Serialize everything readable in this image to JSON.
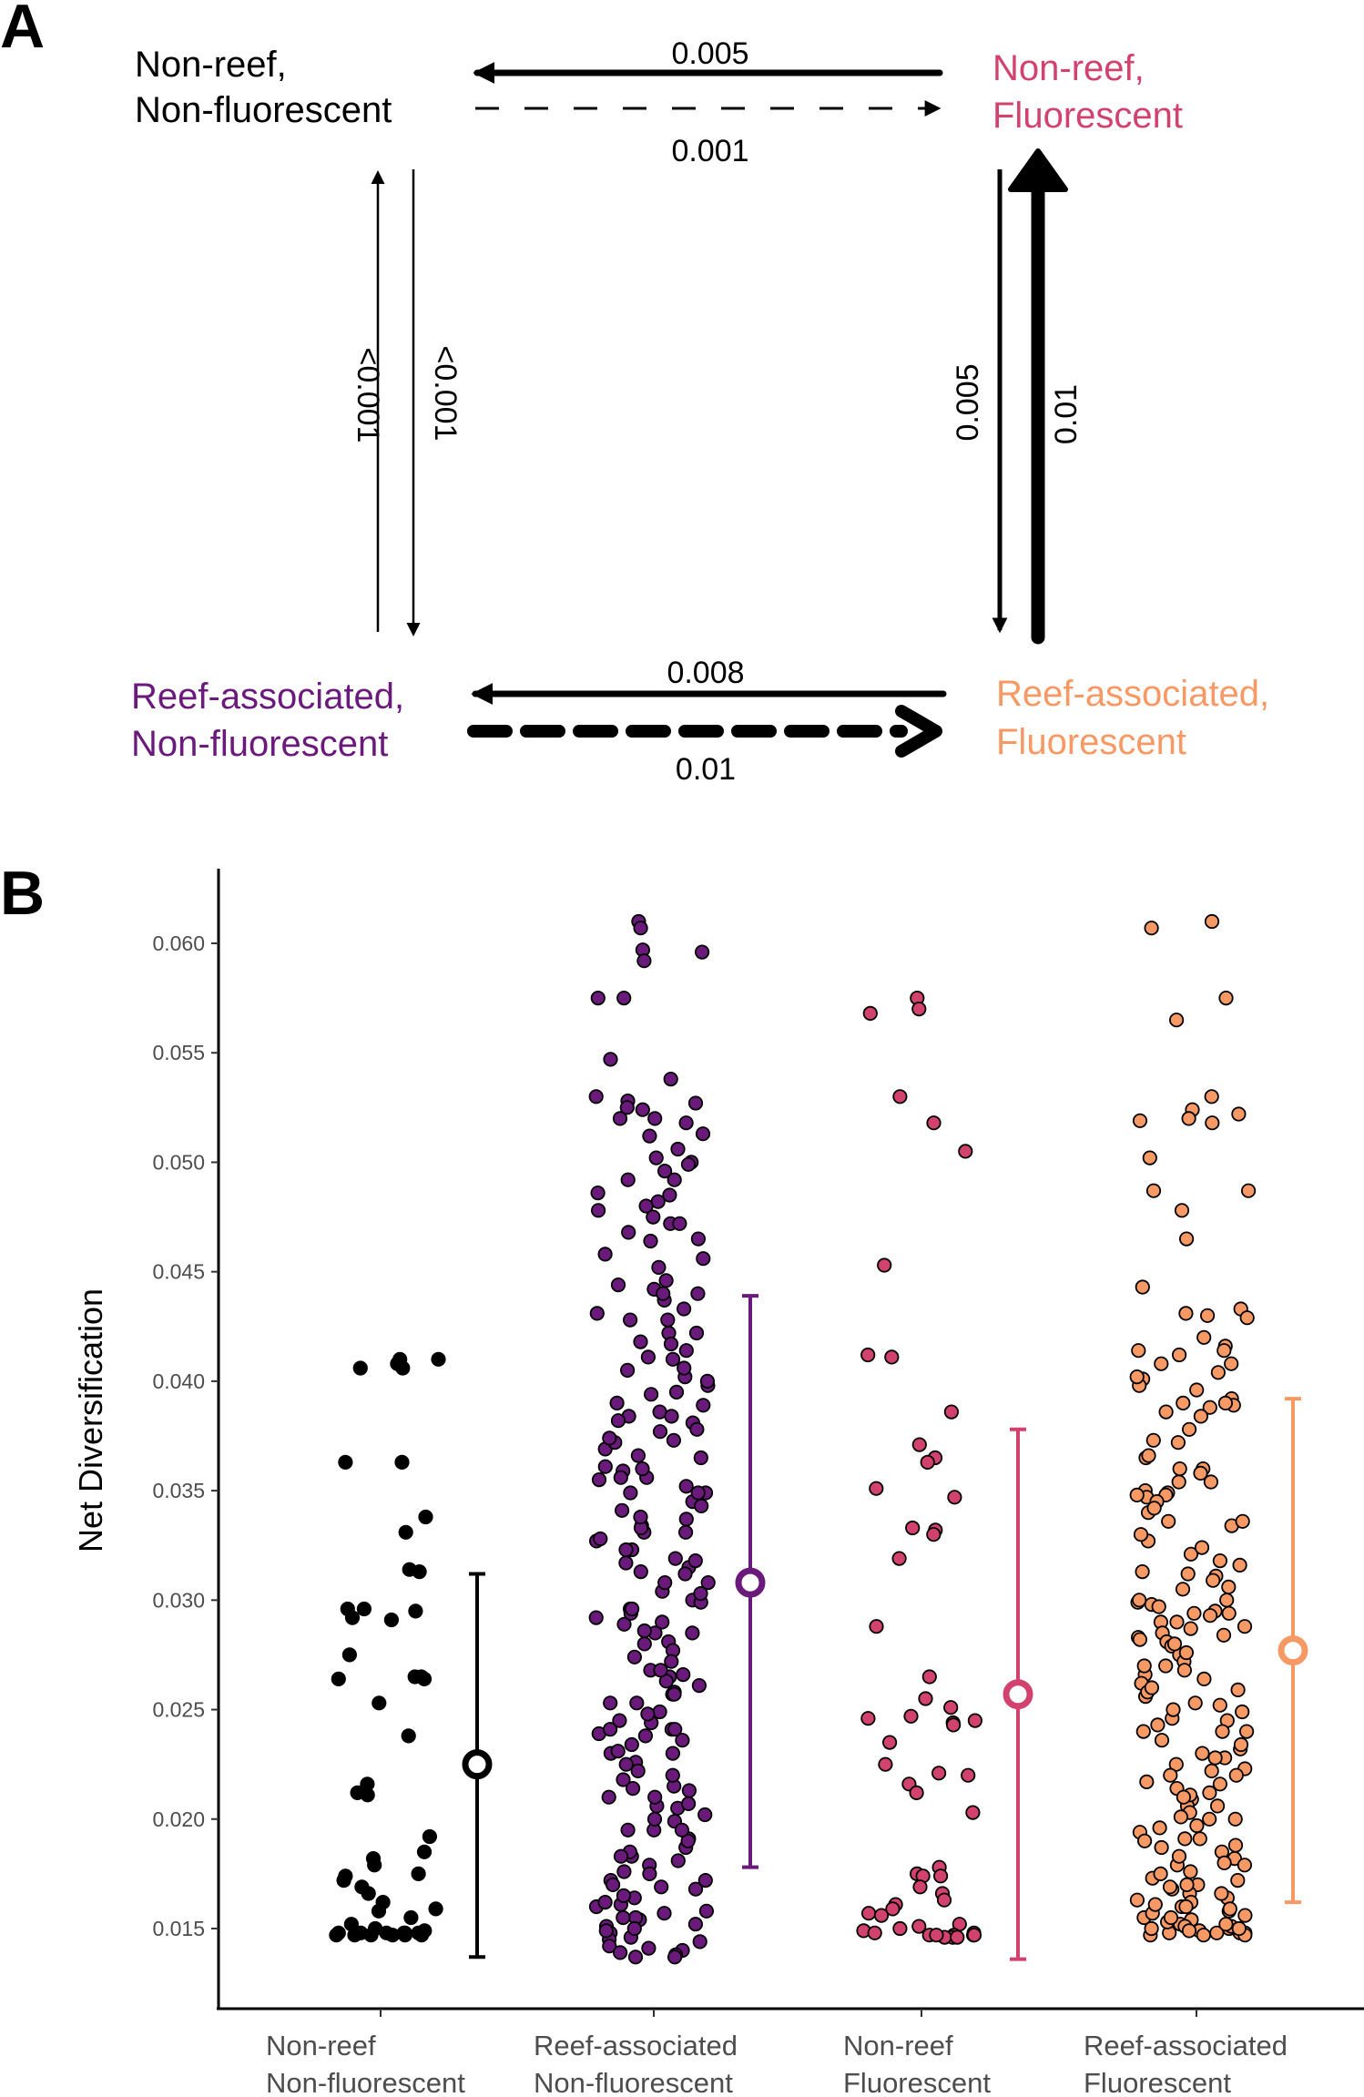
{
  "panel_a": {
    "letter": "A",
    "states": {
      "nrnf": {
        "line1": "Non-reef,",
        "line2": "Non-fluorescent",
        "color": "#000000"
      },
      "nrf": {
        "line1": "Non-reef,",
        "line2": "Fluorescent",
        "color": "#d1426f"
      },
      "ranf": {
        "line1": "Reef-associated,",
        "line2": "Non-fluorescent",
        "color": "#6a1a7a"
      },
      "raf": {
        "line1": "Reef-associated,",
        "line2": "Fluorescent",
        "color": "#f79965"
      }
    },
    "transitions": {
      "nrf_to_nrnf": "0.005",
      "nrnf_to_nrf": "0.001",
      "ranf_to_nrnf": "<0.001",
      "nrnf_to_ranf": "<0.001",
      "nrf_to_raf": "0.005",
      "raf_to_nrf": "0.01",
      "raf_to_ranf": "0.008",
      "ranf_to_raf": "0.01"
    }
  },
  "panel_b": {
    "letter": "B"
  },
  "chart_data": {
    "type": "scatter",
    "title": "",
    "ylabel": "Net Diversification",
    "xlabel": "",
    "ylim": [
      0.0125,
      0.063
    ],
    "yticks": [
      "0.015",
      "0.020",
      "0.025",
      "0.030",
      "0.035",
      "0.040",
      "0.045",
      "0.050",
      "0.055",
      "0.060"
    ],
    "categories": [
      {
        "line1": "Non-reef",
        "line2": "Non-fluorescent"
      },
      {
        "line1": "Reef-associated",
        "line2": "Non-fluorescent"
      },
      {
        "line1": "Non-reef",
        "line2": "Fluorescent"
      },
      {
        "line1": "Reef-associated",
        "line2": "Fluorescent"
      }
    ],
    "series": [
      {
        "name": "Non-reef Non-fluorescent",
        "color": "#000000",
        "fill": "#000000",
        "summary": {
          "mean": 0.0225,
          "lower": 0.0137,
          "upper": 0.0312
        },
        "values": [
          0.041,
          0.0406,
          0.0408,
          0.041,
          0.0406,
          0.0363,
          0.0363,
          0.0338,
          0.0331,
          0.0313,
          0.0314,
          0.0296,
          0.0295,
          0.0296,
          0.0291,
          0.0292,
          0.0275,
          0.0265,
          0.0264,
          0.0265,
          0.0264,
          0.0253,
          0.0238,
          0.0216,
          0.0212,
          0.0211,
          0.0192,
          0.0185,
          0.0182,
          0.0179,
          0.0175,
          0.0174,
          0.0172,
          0.0169,
          0.0166,
          0.0162,
          0.0159,
          0.0158,
          0.0155,
          0.0152,
          0.015,
          0.0149,
          0.0148,
          0.0148,
          0.0148,
          0.0147,
          0.0147,
          0.0148,
          0.0147,
          0.0147,
          0.0148,
          0.0147,
          0.0148,
          0.0147
        ]
      },
      {
        "name": "Reef-associated Non-fluorescent",
        "color": "#6a1a7a",
        "fill": "#6a1a7a",
        "summary": {
          "mean": 0.0308,
          "lower": 0.0178,
          "upper": 0.0439
        },
        "values": [
          0.061,
          0.0607,
          0.0597,
          0.0596,
          0.0592,
          0.0575,
          0.0575,
          0.0547,
          0.0538,
          0.053,
          0.0528,
          0.0525,
          0.0524,
          0.052,
          0.0518,
          0.0512,
          0.0502,
          0.05,
          0.0496,
          0.0492,
          0.0486,
          0.0482,
          0.048,
          0.0475,
          0.0472,
          0.0468,
          0.0464,
          0.0456,
          0.0444,
          0.0442,
          0.044,
          0.0437,
          0.0431,
          0.0428,
          0.0422,
          0.0418,
          0.0414,
          0.041,
          0.0405,
          0.0402,
          0.0398,
          0.0394,
          0.039,
          0.0386,
          0.0384,
          0.0381,
          0.0377,
          0.0373,
          0.0369,
          0.0365,
          0.0361,
          0.0359,
          0.0356,
          0.0352,
          0.0349,
          0.0345,
          0.0341,
          0.0337,
          0.0334,
          0.0331,
          0.0327,
          0.0323,
          0.0319,
          0.0315,
          0.0312,
          0.0308,
          0.0304,
          0.03,
          0.0296,
          0.0292,
          0.0289,
          0.0285,
          0.0281,
          0.0277,
          0.0272,
          0.0268,
          0.0265,
          0.0261,
          0.0257,
          0.0253,
          0.0249,
          0.0245,
          0.0241,
          0.0238,
          0.0234,
          0.023,
          0.0226,
          0.0222,
          0.0218,
          0.0214,
          0.021,
          0.0206,
          0.0202,
          0.0199,
          0.0195,
          0.0191,
          0.0187,
          0.0183,
          0.0179,
          0.0175,
          0.0172,
          0.0168,
          0.0164,
          0.016,
          0.0157,
          0.0154,
          0.0151,
          0.0148,
          0.0145,
          0.0142,
          0.014,
          0.0138,
          0.0137,
          0.0137,
          0.0139,
          0.0141,
          0.0144,
          0.0146,
          0.0149,
          0.0152,
          0.0155,
          0.0158,
          0.0161,
          0.0165,
          0.0169,
          0.0172,
          0.0176,
          0.0181,
          0.0185,
          0.019,
          0.0195,
          0.02,
          0.0205,
          0.021,
          0.0215,
          0.022,
          0.0225,
          0.023,
          0.0236,
          0.0239,
          0.0241,
          0.0244,
          0.0248,
          0.0253,
          0.0258,
          0.0263,
          0.0268,
          0.0274,
          0.028,
          0.0286,
          0.029,
          0.0294,
          0.0299,
          0.0303,
          0.0308,
          0.0313,
          0.0318,
          0.0323,
          0.0328,
          0.0333,
          0.0338,
          0.0343,
          0.0349,
          0.0355,
          0.036,
          0.0366,
          0.0372,
          0.0378,
          0.0384,
          0.0389,
          0.0395,
          0.04,
          0.0406,
          0.0411,
          0.0417,
          0.0422,
          0.0428,
          0.0433,
          0.044,
          0.0446,
          0.0452,
          0.0458,
          0.0465,
          0.0472,
          0.0478,
          0.0485,
          0.0492,
          0.0499,
          0.0506,
          0.0513,
          0.052,
          0.0527,
          0.0382,
          0.0374,
          0.0356,
          0.0349,
          0.0331,
          0.0317,
          0.0296,
          0.0285,
          0.0266,
          0.0257,
          0.0241,
          0.0231,
          0.0213,
          0.0207,
          0.0195,
          0.0183,
          0.017,
          0.0162,
          0.0155,
          0.015
        ]
      },
      {
        "name": "Non-reef Fluorescent",
        "color": "#d1426f",
        "fill": "#d1426f",
        "summary": {
          "mean": 0.0257,
          "lower": 0.0136,
          "upper": 0.0378
        },
        "values": [
          0.0575,
          0.057,
          0.0568,
          0.053,
          0.0518,
          0.0505,
          0.0453,
          0.0412,
          0.0411,
          0.0386,
          0.0371,
          0.0365,
          0.0363,
          0.0351,
          0.0347,
          0.0333,
          0.0332,
          0.033,
          0.0319,
          0.0288,
          0.0265,
          0.0255,
          0.0251,
          0.0247,
          0.0246,
          0.0245,
          0.0244,
          0.0243,
          0.0235,
          0.0225,
          0.0221,
          0.022,
          0.0216,
          0.0212,
          0.0203,
          0.0178,
          0.0175,
          0.0174,
          0.0174,
          0.0169,
          0.0166,
          0.0163,
          0.0161,
          0.0159,
          0.0157,
          0.0156,
          0.0152,
          0.0151,
          0.015,
          0.0149,
          0.0148,
          0.0148,
          0.0147,
          0.0147,
          0.0147,
          0.0146,
          0.0146,
          0.0146,
          0.0147,
          0.0147
        ]
      },
      {
        "name": "Reef-associated Fluorescent",
        "color": "#f79965",
        "fill": "#f79965",
        "summary": {
          "mean": 0.0277,
          "lower": 0.0162,
          "upper": 0.0392
        },
        "values": [
          0.061,
          0.0607,
          0.0575,
          0.0565,
          0.053,
          0.0524,
          0.0522,
          0.052,
          0.0519,
          0.0518,
          0.0502,
          0.0487,
          0.0487,
          0.0478,
          0.0465,
          0.0443,
          0.0433,
          0.0431,
          0.043,
          0.0429,
          0.0416,
          0.0414,
          0.0412,
          0.0408,
          0.0404,
          0.0401,
          0.0398,
          0.0392,
          0.039,
          0.0389,
          0.0388,
          0.0386,
          0.0373,
          0.0365,
          0.036,
          0.0358,
          0.0354,
          0.035,
          0.0349,
          0.0348,
          0.0347,
          0.0345,
          0.034,
          0.0336,
          0.0334,
          0.0327,
          0.0321,
          0.0316,
          0.0313,
          0.0311,
          0.0309,
          0.0305,
          0.0299,
          0.0298,
          0.0297,
          0.0295,
          0.0294,
          0.0293,
          0.029,
          0.0287,
          0.0285,
          0.0284,
          0.0283,
          0.0281,
          0.0279,
          0.0275,
          0.0272,
          0.0268,
          0.0266,
          0.0262,
          0.0259,
          0.0256,
          0.0253,
          0.0249,
          0.0245,
          0.0243,
          0.024,
          0.0236,
          0.0232,
          0.0228,
          0.0225,
          0.0223,
          0.022,
          0.0217,
          0.0214,
          0.0212,
          0.0209,
          0.0206,
          0.0203,
          0.02,
          0.0197,
          0.0194,
          0.0191,
          0.0188,
          0.0185,
          0.0182,
          0.0179,
          0.0176,
          0.0173,
          0.017,
          0.0168,
          0.0166,
          0.0164,
          0.0162,
          0.016,
          0.0158,
          0.0156,
          0.0154,
          0.0152,
          0.0151,
          0.015,
          0.0149,
          0.0148,
          0.0148,
          0.0147,
          0.0147,
          0.0147,
          0.0148,
          0.0148,
          0.0149,
          0.015,
          0.0151,
          0.0153,
          0.0155,
          0.0157,
          0.0159,
          0.0161,
          0.0163,
          0.0166,
          0.0169,
          0.0172,
          0.0175,
          0.0179,
          0.0183,
          0.0187,
          0.0191,
          0.0196,
          0.0201,
          0.0206,
          0.0211,
          0.0216,
          0.0222,
          0.0228,
          0.0234,
          0.024,
          0.0246,
          0.0252,
          0.0258,
          0.0264,
          0.027,
          0.0276,
          0.0282,
          0.0288,
          0.0294,
          0.03,
          0.0306,
          0.0312,
          0.0318,
          0.0324,
          0.033,
          0.0336,
          0.0342,
          0.0348,
          0.0354,
          0.036,
          0.0366,
          0.0372,
          0.0378,
          0.0384,
          0.039,
          0.0396,
          0.0402,
          0.0408,
          0.0414,
          0.042,
          0.03,
          0.029,
          0.028,
          0.027,
          0.026,
          0.025,
          0.024,
          0.023,
          0.022,
          0.021,
          0.02,
          0.019,
          0.018,
          0.017,
          0.016,
          0.0155,
          0.0152,
          0.015
        ]
      }
    ]
  }
}
